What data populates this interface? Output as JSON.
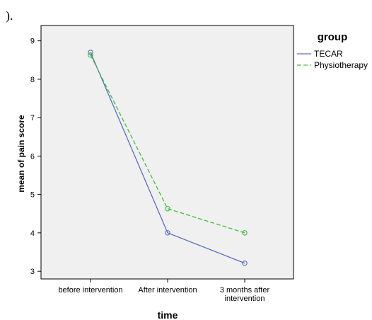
{
  "stray_text": ").",
  "chart_data": {
    "type": "line",
    "categories": [
      [
        "before intervention"
      ],
      [
        "After intervention"
      ],
      [
        "3 months after",
        "intervention"
      ]
    ],
    "series": [
      {
        "name": "TECAR",
        "values": [
          8.7,
          4.0,
          3.21
        ],
        "color": "#5a6fbf",
        "dash": "solid"
      },
      {
        "name": "Physiotherapy",
        "values": [
          8.63,
          4.63,
          4.0
        ],
        "color": "#44bb44",
        "dash": "dashed"
      }
    ],
    "xlabel": "time",
    "ylabel": "mean of pain score",
    "ylim": [
      2.8,
      9.4
    ],
    "yticks": [
      3,
      4,
      5,
      6,
      7,
      8,
      9
    ],
    "legend": {
      "title": "group",
      "position": "right"
    },
    "plot_background": "#f0f0f0",
    "grid": false,
    "markers": "open-circle"
  }
}
